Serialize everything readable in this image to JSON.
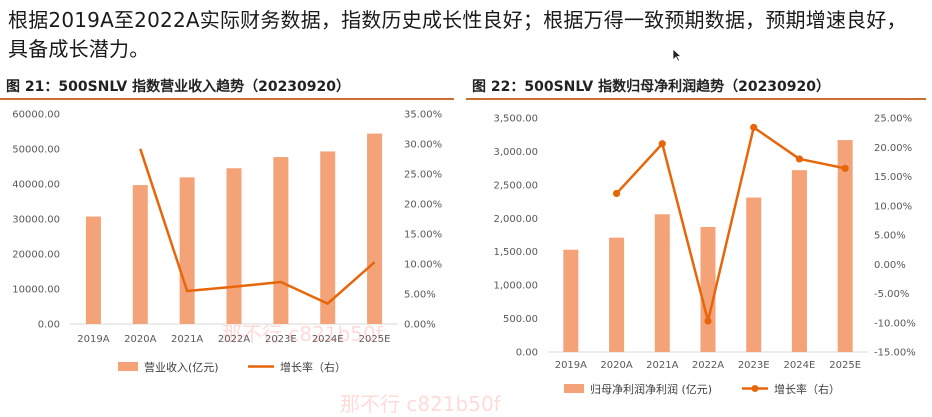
{
  "headline": "根据2019A至2022A实际财务数据，指数历史成长性良好；根据万得一致预期数据，预期增速良好，具备成长潜力。",
  "colors": {
    "bar": "#f4a378",
    "line": "#e8660a",
    "axis": "#d9d9d9",
    "title_rule": "#cc6f2e"
  },
  "watermarks": [
    "那不行 c821b50f",
    "那不行 c821b50f"
  ],
  "chart_data": [
    {
      "type": "bar",
      "title": "图 21：500SNLV 指数营业收入趋势（20230920）",
      "categories": [
        "2019A",
        "2020A",
        "2021A",
        "2022A",
        "2023E",
        "2024E",
        "2025E"
      ],
      "series": [
        {
          "name": "营业收入(亿元)",
          "type": "bar",
          "axis": "left",
          "values": [
            30700,
            39700,
            41900,
            44500,
            47700,
            49300,
            54400
          ]
        },
        {
          "name": "增长率（右）",
          "type": "line",
          "axis": "right",
          "values": [
            null,
            29.2,
            5.5,
            6.2,
            7.0,
            3.4,
            10.3
          ]
        }
      ],
      "left_axis": {
        "ylim": [
          0,
          60000
        ],
        "ticks": [
          "0.00",
          "10000.00",
          "20000.00",
          "30000.00",
          "40000.00",
          "50000.00",
          "60000.00"
        ]
      },
      "right_axis": {
        "ylim": [
          0,
          35
        ],
        "ticks": [
          "0.00%",
          "5.00%",
          "10.00%",
          "15.00%",
          "20.00%",
          "25.00%",
          "30.00%",
          "35.00%"
        ]
      },
      "legend": [
        "营业收入(亿元)",
        "增长率（右）"
      ],
      "legend_position": "bottom",
      "grid": false
    },
    {
      "type": "bar",
      "title": "图 22：500SNLV 指数归母净利润趋势（20230920）",
      "categories": [
        "2019A",
        "2020A",
        "2021A",
        "2022A",
        "2023E",
        "2024E",
        "2025E"
      ],
      "series": [
        {
          "name": "归母净利润净利润 (亿元)",
          "type": "bar",
          "axis": "left",
          "values": [
            1530,
            1710,
            2060,
            1870,
            2310,
            2720,
            3170
          ]
        },
        {
          "name": "增长率（右）",
          "type": "line",
          "axis": "right",
          "values": [
            null,
            12.1,
            20.6,
            -9.7,
            23.4,
            18.0,
            16.4
          ]
        }
      ],
      "left_axis": {
        "ylim": [
          0,
          3500
        ],
        "ticks": [
          "0.00",
          "500.00",
          "1,000.00",
          "1,500.00",
          "2,000.00",
          "2,500.00",
          "3,000.00",
          "3,500.00"
        ]
      },
      "right_axis": {
        "ylim": [
          -15,
          25
        ],
        "ticks": [
          "-15.00%",
          "-10.00%",
          "-5.00%",
          "0.00%",
          "5.00%",
          "10.00%",
          "15.00%",
          "20.00%",
          "25.00%"
        ]
      },
      "legend": [
        "归母净利润净利润 (亿元)",
        "增长率（右）"
      ],
      "legend_position": "bottom",
      "grid": false
    }
  ]
}
